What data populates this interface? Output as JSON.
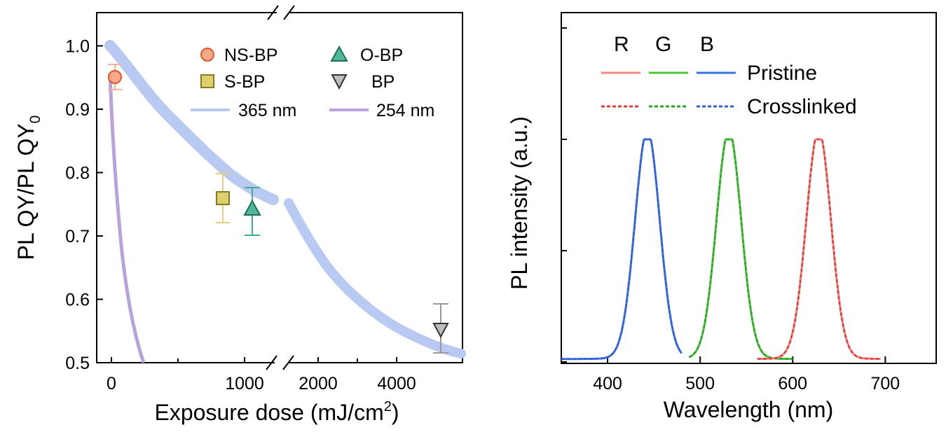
{
  "chart_data": [
    {
      "type": "scatter",
      "ylabel": "PL QY/PL QY",
      "ylabel_sub": "0",
      "xlabel": "Exposure dose (mJ/cm",
      "xlabel_sup": "2",
      "xlabel_end": ")",
      "ylim": [
        0.5,
        1.05
      ],
      "y_ticks": [
        "1.0",
        "0.9",
        "0.8",
        "0.7",
        "0.6",
        "0.5"
      ],
      "x_ticks_left": [
        "0",
        "1000"
      ],
      "x_ticks_right": [
        "2000",
        "4000"
      ],
      "x_break": "broken axis between 1300 and 1600 mJ/cm2",
      "points": [
        {
          "name": "NS-BP",
          "x": 50,
          "y": 0.95,
          "err": 0.02,
          "color": "#f08a5d",
          "marker": "circle"
        },
        {
          "name": "S-BP",
          "x": 850,
          "y": 0.76,
          "err": 0.04,
          "color": "#d4c15a",
          "marker": "square"
        },
        {
          "name": "O-BP",
          "x": 1050,
          "y": 0.74,
          "err": 0.037,
          "color": "#3fae8f",
          "marker": "triangle-up"
        },
        {
          "name": "BP",
          "x": 4700,
          "y": 0.555,
          "err": 0.038,
          "color": "#b5b5b5",
          "marker": "triangle-down"
        }
      ],
      "lines": [
        {
          "name": "365 nm",
          "color": "#b8c9f2"
        },
        {
          "name": "254 nm",
          "color": "#b7a4dd"
        }
      ]
    },
    {
      "type": "line",
      "ylabel": "PL intensity (a.u.)",
      "xlabel": "Wavelength (nm)",
      "xlim": [
        350,
        755
      ],
      "x_ticks": [
        "400",
        "500",
        "600",
        "700"
      ],
      "legend_headers": [
        "R",
        "G",
        "B"
      ],
      "legend_rows": [
        "Pristine",
        "Crosslinked"
      ],
      "series": [
        {
          "name": "B",
          "peak": 443,
          "color": "#2f5fd6"
        },
        {
          "name": "G",
          "peak": 531,
          "color": "#35b52b"
        },
        {
          "name": "R",
          "peak": 628,
          "color": "#e53a3a"
        }
      ],
      "pristine_colors": [
        "#f08a80",
        "#4fc33a",
        "#3b6fe0"
      ],
      "crosslinked_colors": [
        "#e53a3a",
        "#2aa52a",
        "#2f5fd6"
      ]
    }
  ]
}
